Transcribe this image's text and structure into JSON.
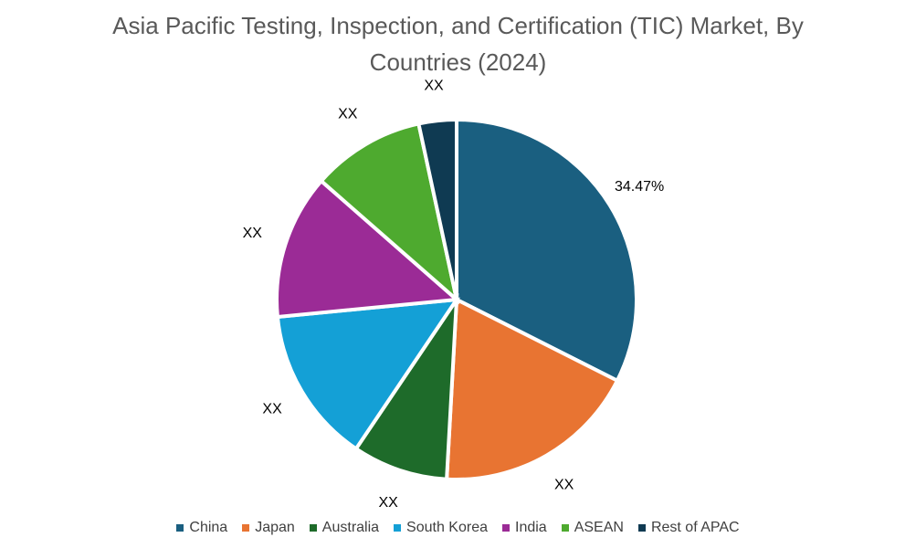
{
  "chart_data": {
    "type": "pie",
    "title": "Asia Pacific Testing, Inspection, and Certification (TIC) Market, By Countries (2024)",
    "categories": [
      "China",
      "Japan",
      "Australia",
      "South Korea",
      "India",
      "ASEAN",
      "Rest of APAC"
    ],
    "values": [
      34.47,
      19.6,
      9.1,
      14.9,
      13.8,
      10.8,
      3.6
    ],
    "value_labels": [
      "34.47%",
      "XX",
      "XX",
      "XX",
      "XX",
      "XX",
      "XX"
    ],
    "colors": [
      "#1a5f80",
      "#e87432",
      "#1e6b2a",
      "#14a0d6",
      "#9b2b96",
      "#4eaa2f",
      "#0f3a52"
    ],
    "legend": "bottom"
  }
}
